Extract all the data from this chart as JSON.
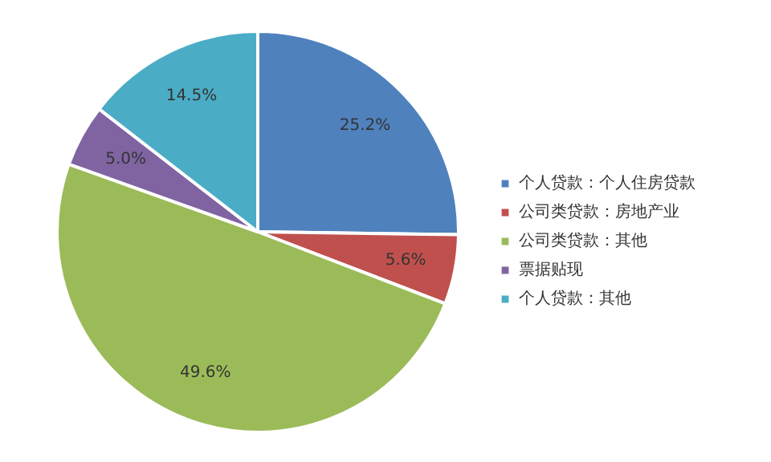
{
  "chart_data": {
    "type": "pie",
    "categories": [
      "个人贷款：个人住房贷款",
      "公司类贷款：房地产业",
      "公司类贷款：其他",
      "票据贴现",
      "个人贷款：其他"
    ],
    "values": [
      25.2,
      5.6,
      49.6,
      5.0,
      14.5
    ],
    "value_labels": [
      "25.2%",
      "5.6%",
      "49.6%",
      "5.0%",
      "14.5%"
    ],
    "colors": [
      "#4f81bd",
      "#c0504d",
      "#9bbb59",
      "#8064a2",
      "#4bacc6"
    ],
    "legend": "right"
  }
}
